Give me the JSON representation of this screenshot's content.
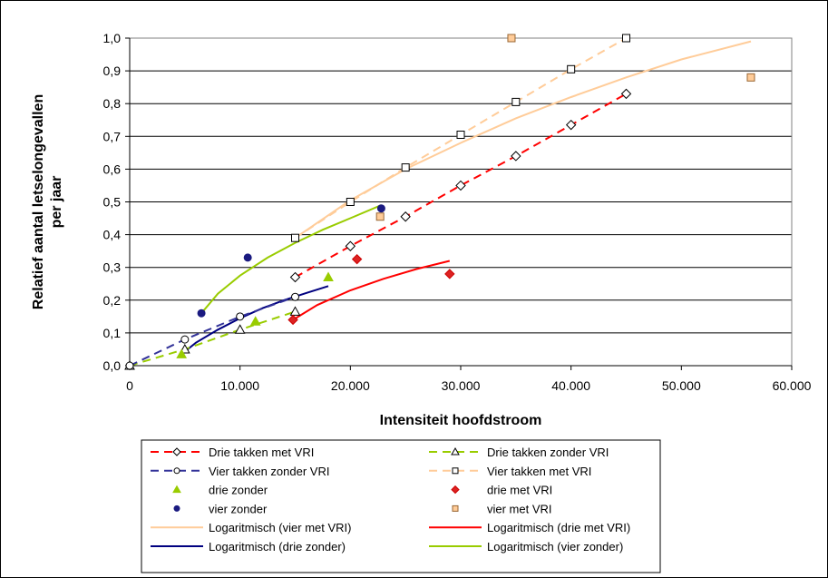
{
  "chart_data": {
    "type": "scatter",
    "xlabel": "Intensiteit hoofdstroom",
    "ylabel_lines": [
      "Relatief aantal letselongevallen",
      "per jaar"
    ],
    "xlim": [
      0,
      60000
    ],
    "ylim": [
      0,
      1.0
    ],
    "x_ticks": [
      {
        "value": 0,
        "label": "0"
      },
      {
        "value": 10000,
        "label": "10.000"
      },
      {
        "value": 20000,
        "label": "20.000"
      },
      {
        "value": 30000,
        "label": "30.000"
      },
      {
        "value": 40000,
        "label": "40.000"
      },
      {
        "value": 50000,
        "label": "50.000"
      },
      {
        "value": 60000,
        "label": "60.000"
      }
    ],
    "y_ticks": [
      {
        "value": 0.0,
        "label": "0,0"
      },
      {
        "value": 0.1,
        "label": "0,1"
      },
      {
        "value": 0.2,
        "label": "0,2"
      },
      {
        "value": 0.3,
        "label": "0,3"
      },
      {
        "value": 0.4,
        "label": "0,4"
      },
      {
        "value": 0.5,
        "label": "0,5"
      },
      {
        "value": 0.6,
        "label": "0,6"
      },
      {
        "value": 0.7,
        "label": "0,7"
      },
      {
        "value": 0.8,
        "label": "0,8"
      },
      {
        "value": 0.9,
        "label": "0,9"
      },
      {
        "value": 1.0,
        "label": "1,0"
      }
    ],
    "grid": "horizontal",
    "legend_position": "bottom",
    "series": [
      {
        "name": "Drie takken met VRI",
        "kind": "line-marker",
        "color": "#ff0000",
        "dash": true,
        "marker": "diamond",
        "marker_fill": "#ffffff",
        "x": [
          15000,
          20000,
          25000,
          30000,
          35000,
          40000,
          45000
        ],
        "y": [
          0.27,
          0.365,
          0.455,
          0.55,
          0.64,
          0.735,
          0.83
        ]
      },
      {
        "name": "Drie takken zonder VRI",
        "kind": "line-marker",
        "color": "#99cc00",
        "dash": true,
        "marker": "triangle",
        "marker_fill": "#ffffff",
        "x": [
          0,
          5000,
          10000,
          15000
        ],
        "y": [
          0.0,
          0.05,
          0.11,
          0.165
        ]
      },
      {
        "name": "Vier takken zonder VRI",
        "kind": "line-marker",
        "color": "#333399",
        "dash": true,
        "marker": "circle",
        "marker_fill": "#ffffff",
        "x": [
          0,
          5000,
          10000,
          15000
        ],
        "y": [
          0.0,
          0.08,
          0.15,
          0.21
        ]
      },
      {
        "name": "Vier takken met VRI",
        "kind": "line-marker",
        "color": "#ffcc99",
        "dash": true,
        "marker": "square",
        "marker_fill": "#ffffff",
        "x": [
          15000,
          20000,
          25000,
          30000,
          35000,
          40000,
          45000
        ],
        "y": [
          0.39,
          0.5,
          0.605,
          0.705,
          0.805,
          0.905,
          1.0
        ]
      },
      {
        "name": "drie zonder",
        "kind": "marker",
        "color": "#99cc00",
        "marker": "triangle",
        "marker_fill": "#99cc00",
        "x": [
          4700,
          11400,
          18000
        ],
        "y": [
          0.035,
          0.135,
          0.27
        ]
      },
      {
        "name": "drie met VRI",
        "kind": "marker",
        "color": "#cc0000",
        "marker": "diamond",
        "marker_fill": "#dd2222",
        "x": [
          14800,
          20600,
          29000
        ],
        "y": [
          0.14,
          0.325,
          0.28
        ]
      },
      {
        "name": "vier zonder",
        "kind": "marker",
        "color": "#1a1a80",
        "marker": "circle",
        "marker_fill": "#1a1a80",
        "x": [
          6500,
          10700,
          22800
        ],
        "y": [
          0.16,
          0.33,
          0.48
        ]
      },
      {
        "name": "vier met VRI",
        "kind": "marker",
        "color": "#996633",
        "marker": "square",
        "marker_fill": "#ffcc99",
        "x": [
          22700,
          34600,
          56300
        ],
        "y": [
          0.455,
          1.0,
          0.88
        ]
      },
      {
        "name": "Logaritmisch (vier met VRI)",
        "kind": "trend",
        "color": "#ffcc99",
        "x": [
          15000,
          20000,
          25000,
          30000,
          35000,
          40000,
          45000,
          50000,
          56300
        ],
        "y": [
          0.39,
          0.505,
          0.6,
          0.68,
          0.755,
          0.82,
          0.88,
          0.935,
          0.99
        ]
      },
      {
        "name": "Logaritmisch (drie met VRI)",
        "kind": "trend",
        "color": "#ff0000",
        "x": [
          14800,
          17000,
          20000,
          23000,
          26000,
          29000
        ],
        "y": [
          0.14,
          0.185,
          0.23,
          0.265,
          0.295,
          0.32
        ]
      },
      {
        "name": "Logaritmisch (drie zonder)",
        "kind": "trend",
        "color": "#000080",
        "x": [
          4700,
          6000,
          8000,
          10000,
          12000,
          14000,
          16000,
          18000
        ],
        "y": [
          0.035,
          0.07,
          0.11,
          0.145,
          0.175,
          0.2,
          0.222,
          0.243
        ]
      },
      {
        "name": "Logaritmisch (vier zonder)",
        "kind": "trend",
        "color": "#99cc00",
        "x": [
          6500,
          8000,
          10000,
          12500,
          15000,
          17500,
          20000,
          22800
        ],
        "y": [
          0.16,
          0.22,
          0.275,
          0.33,
          0.375,
          0.415,
          0.45,
          0.49
        ]
      }
    ]
  }
}
